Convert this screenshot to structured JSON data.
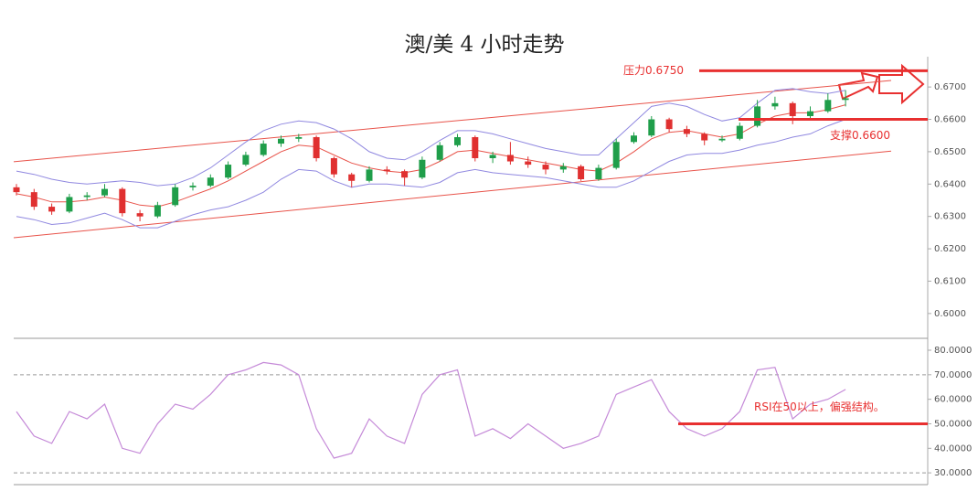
{
  "chart_data": [
    {
      "type": "candlestick",
      "title": "澳/美 4 小时走势",
      "categories": [
        null,
        null,
        null,
        null,
        null,
        null,
        null,
        null,
        null,
        null,
        null,
        null,
        null,
        null,
        null,
        null,
        null,
        null,
        null,
        null,
        null,
        null,
        null,
        null,
        null,
        null,
        null,
        null,
        null,
        null,
        null,
        null,
        null,
        null,
        null,
        null,
        null,
        null,
        null,
        null,
        null,
        null,
        null,
        null,
        null,
        null,
        null,
        null
      ],
      "open": [
        0.639,
        0.6375,
        0.633,
        0.6315,
        0.636,
        0.6365,
        0.6385,
        0.631,
        0.63,
        0.6335,
        0.639,
        0.6395,
        0.642,
        0.646,
        0.649,
        0.6525,
        0.654,
        0.6545,
        0.648,
        0.643,
        0.641,
        0.6445,
        0.644,
        0.642,
        0.6475,
        0.652,
        0.6545,
        0.648,
        0.649,
        0.647,
        0.646,
        0.6445,
        0.6455,
        0.6415,
        0.645,
        0.653,
        0.655,
        0.66,
        0.657,
        0.6555,
        0.6535,
        0.654,
        0.658,
        0.664,
        0.665,
        0.661,
        0.6625,
        0.666
      ],
      "high": [
        0.64,
        0.6385,
        0.634,
        0.637,
        0.6375,
        0.64,
        0.639,
        0.632,
        0.6345,
        0.64,
        0.6405,
        0.643,
        0.647,
        0.65,
        0.6535,
        0.655,
        0.6555,
        0.655,
        0.6485,
        0.6435,
        0.6455,
        0.6455,
        0.6445,
        0.6485,
        0.653,
        0.6555,
        0.655,
        0.65,
        0.653,
        0.6485,
        0.647,
        0.6465,
        0.646,
        0.646,
        0.654,
        0.656,
        0.661,
        0.6605,
        0.658,
        0.656,
        0.655,
        0.659,
        0.666,
        0.667,
        0.6655,
        0.664,
        0.668,
        0.669
      ],
      "low": [
        0.6365,
        0.632,
        0.6305,
        0.631,
        0.635,
        0.636,
        0.63,
        0.6285,
        0.6295,
        0.633,
        0.638,
        0.639,
        0.6415,
        0.6455,
        0.6485,
        0.6515,
        0.653,
        0.647,
        0.642,
        0.639,
        0.6405,
        0.643,
        0.6395,
        0.6415,
        0.647,
        0.6515,
        0.647,
        0.6465,
        0.646,
        0.645,
        0.643,
        0.6435,
        0.641,
        0.641,
        0.6445,
        0.6525,
        0.6545,
        0.656,
        0.6545,
        0.652,
        0.653,
        0.6535,
        0.6575,
        0.663,
        0.6585,
        0.66,
        0.662,
        0.664
      ],
      "close": [
        0.6375,
        0.633,
        0.6315,
        0.636,
        0.6365,
        0.6385,
        0.631,
        0.63,
        0.6335,
        0.639,
        0.6395,
        0.642,
        0.646,
        0.649,
        0.6525,
        0.654,
        0.6545,
        0.648,
        0.643,
        0.641,
        0.6445,
        0.644,
        0.642,
        0.6475,
        0.652,
        0.6545,
        0.648,
        0.649,
        0.647,
        0.646,
        0.6445,
        0.6455,
        0.6415,
        0.645,
        0.653,
        0.655,
        0.66,
        0.657,
        0.6555,
        0.6535,
        0.654,
        0.658,
        0.664,
        0.665,
        0.661,
        0.6625,
        0.666,
        0.6665
      ],
      "up_color": "#1f9e4a",
      "down_color": "#e03030",
      "bands": [
        {
          "color": "#9088e0",
          "values": [
            0.644,
            0.643,
            0.6415,
            0.6405,
            0.64,
            0.6405,
            0.641,
            0.6405,
            0.6395,
            0.64,
            0.642,
            0.645,
            0.649,
            0.653,
            0.6565,
            0.6585,
            0.6595,
            0.659,
            0.657,
            0.654,
            0.65,
            0.648,
            0.6475,
            0.65,
            0.6535,
            0.6565,
            0.6565,
            0.6555,
            0.654,
            0.6525,
            0.651,
            0.65,
            0.649,
            0.649,
            0.654,
            0.659,
            0.664,
            0.665,
            0.664,
            0.6615,
            0.6595,
            0.6605,
            0.665,
            0.669,
            0.6695,
            0.6685,
            0.668,
            0.669
          ]
        },
        {
          "color": "#e8534a",
          "values": [
            0.637,
            0.636,
            0.6345,
            0.6345,
            0.635,
            0.636,
            0.635,
            0.6335,
            0.633,
            0.6345,
            0.6365,
            0.6385,
            0.641,
            0.644,
            0.647,
            0.65,
            0.652,
            0.6515,
            0.649,
            0.6465,
            0.645,
            0.644,
            0.6435,
            0.6445,
            0.647,
            0.65,
            0.6505,
            0.6495,
            0.6485,
            0.6475,
            0.6465,
            0.6455,
            0.6445,
            0.644,
            0.6465,
            0.65,
            0.654,
            0.656,
            0.6565,
            0.6555,
            0.6545,
            0.6555,
            0.6585,
            0.661,
            0.662,
            0.662,
            0.663,
            0.6645
          ]
        },
        {
          "color": "#9088e0",
          "values": [
            0.63,
            0.629,
            0.6275,
            0.628,
            0.6295,
            0.631,
            0.629,
            0.6265,
            0.6265,
            0.6285,
            0.6305,
            0.632,
            0.633,
            0.635,
            0.6375,
            0.6415,
            0.6445,
            0.644,
            0.641,
            0.639,
            0.64,
            0.64,
            0.6395,
            0.639,
            0.6405,
            0.6435,
            0.6445,
            0.6435,
            0.643,
            0.6425,
            0.642,
            0.641,
            0.64,
            0.639,
            0.639,
            0.641,
            0.644,
            0.647,
            0.649,
            0.6495,
            0.6495,
            0.6505,
            0.652,
            0.653,
            0.6545,
            0.6555,
            0.658,
            0.66
          ]
        }
      ],
      "trendlines": [
        {
          "color": "#e8534a",
          "values": [
            0.6469,
            0.672
          ]
        },
        {
          "color": "#e8534a",
          "values": [
            0.6234,
            0.6502
          ]
        }
      ],
      "annotations": [
        {
          "text": "压力0.6750",
          "value": 0.675,
          "color": "#e83030"
        },
        {
          "text": "支撑0.6600",
          "value": 0.66,
          "color": "#e83030"
        }
      ],
      "ylim": [
        0.5929,
        0.6771
      ],
      "yticks": [
        {
          "value": 0.67,
          "label": "0.6700"
        },
        {
          "value": 0.66,
          "label": "0.6600"
        },
        {
          "value": 0.65,
          "label": "0.6500"
        },
        {
          "value": 0.64,
          "label": "0.6400"
        },
        {
          "value": 0.63,
          "label": "0.6300"
        },
        {
          "value": 0.62,
          "label": "0.6200"
        },
        {
          "value": 0.61,
          "label": "0.6100"
        },
        {
          "value": 0.6,
          "label": "0.6000"
        }
      ]
    },
    {
      "type": "line",
      "name": "RSI",
      "color": "#c58ad8",
      "values": [
        55,
        45,
        42,
        55,
        52,
        58,
        40,
        38,
        50,
        58,
        56,
        62,
        70,
        72,
        75,
        74,
        70,
        48,
        36,
        38,
        52,
        45,
        42,
        62,
        70,
        72,
        45,
        48,
        44,
        50,
        45,
        40,
        42,
        45,
        62,
        65,
        68,
        55,
        48,
        45,
        48,
        55,
        72,
        73,
        52,
        58,
        60,
        64
      ],
      "reference_lines": [
        70,
        30
      ],
      "annotations": [
        {
          "text": "RSI在50以上，偏强结构。",
          "value": 50,
          "color": "#e83030"
        }
      ],
      "ylim": [
        25.2,
        84.1
      ],
      "yticks": [
        {
          "value": 80,
          "label": "80.0000"
        },
        {
          "value": 70,
          "label": "70.0000"
        },
        {
          "value": 60,
          "label": "60.0000"
        },
        {
          "value": 50,
          "label": "50.0000"
        },
        {
          "value": 40,
          "label": "40.0000"
        },
        {
          "value": 30,
          "label": "30.0000"
        }
      ]
    }
  ]
}
